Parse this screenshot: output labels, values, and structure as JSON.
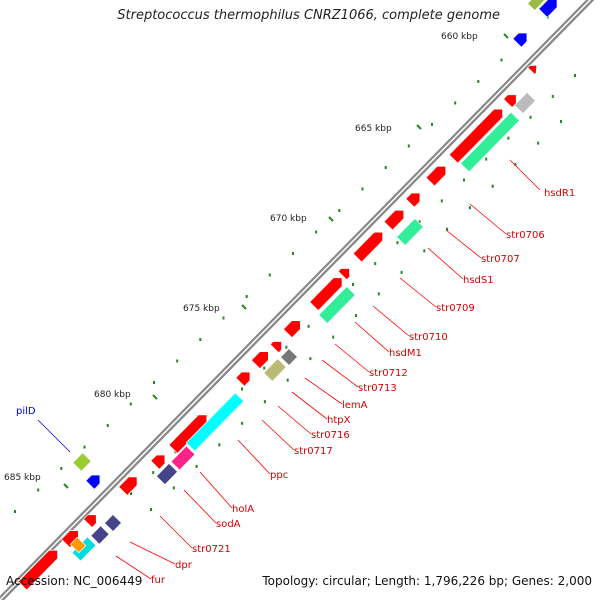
{
  "title": "Streptococcus thermophilus CNRZ1066, complete genome",
  "accession": "Accession: NC_006449",
  "topology": "Topology: circular; Length: 1,796,226 bp; Genes: 2,000",
  "ticks": [
    "660 kbp",
    "665 kbp",
    "670 kbp",
    "675 kbp",
    "680 kbp",
    "685 kbp"
  ],
  "genes": [
    {
      "label": "hsdR1",
      "color": "#d40000"
    },
    {
      "label": "str0706",
      "color": "#d40000"
    },
    {
      "label": "str0707",
      "color": "#d40000"
    },
    {
      "label": "hsdS1",
      "color": "#d40000"
    },
    {
      "label": "str0709",
      "color": "#d40000"
    },
    {
      "label": "str0710",
      "color": "#d40000"
    },
    {
      "label": "hsdM1",
      "color": "#d40000"
    },
    {
      "label": "str0712",
      "color": "#d40000"
    },
    {
      "label": "str0713",
      "color": "#d40000"
    },
    {
      "label": "lemA",
      "color": "#d40000"
    },
    {
      "label": "htpX",
      "color": "#d40000"
    },
    {
      "label": "str0716",
      "color": "#d40000"
    },
    {
      "label": "str0717",
      "color": "#d40000"
    },
    {
      "label": "ppc",
      "color": "#d40000"
    },
    {
      "label": "holA",
      "color": "#d40000"
    },
    {
      "label": "sodA",
      "color": "#d40000"
    },
    {
      "label": "str0721",
      "color": "#d40000"
    },
    {
      "label": "dpr",
      "color": "#d40000"
    },
    {
      "label": "fur",
      "color": "#d40000"
    },
    {
      "label": "pilD",
      "color": "#0000cc"
    }
  ],
  "colors": {
    "forward_cds": "#ff0000",
    "reverse_cds": "#0000ff",
    "backbone": "#888888",
    "tick": "#228822"
  }
}
